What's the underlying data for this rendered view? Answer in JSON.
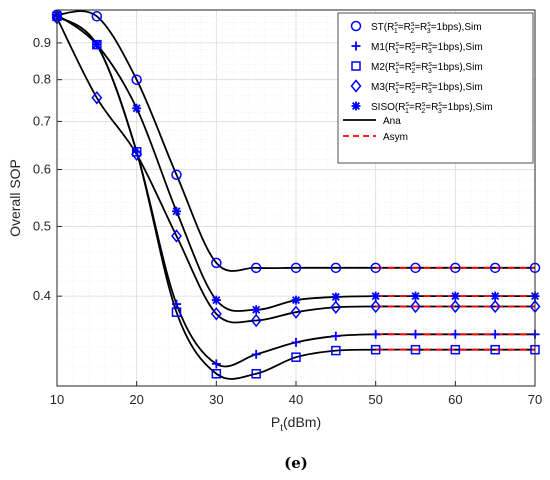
{
  "chart_data": {
    "type": "line",
    "title": "",
    "xlabel": "P",
    "xlabel_sub": "t",
    "xlabel_suffix": "(dBm)",
    "ylabel": "Overall SOP",
    "xlim": [
      10,
      70
    ],
    "ylim": [
      0.3,
      1.0
    ],
    "yscale": "log",
    "grid": true,
    "legend_position": "top-right",
    "x_ticks": [
      10,
      20,
      30,
      40,
      50,
      60,
      70
    ],
    "y_ticks": [
      0.4,
      0.5,
      0.6,
      0.7,
      0.8,
      0.9
    ],
    "y_tick_labels": [
      "0.4",
      "0.5",
      "0.6",
      "0.7",
      "0.8",
      "0.9"
    ],
    "x": [
      10,
      15,
      20,
      25,
      30,
      35,
      40,
      45,
      50,
      55,
      60,
      65,
      70
    ],
    "series": [
      {
        "name": "ST(R1s=R2s=R3s=1bps),Sim",
        "marker": "circle",
        "legend": {
          "pre": "ST(R",
          "sub": "1",
          "mid1": "=R",
          "sub2": "2",
          "mid2": "=R",
          "sub3": "3",
          "post": "=1bps),Sim"
        },
        "values": [
          0.985,
          0.98,
          0.8,
          0.59,
          0.445,
          0.438,
          0.438,
          0.438,
          0.438,
          0.438,
          0.438,
          0.438,
          0.438
        ]
      },
      {
        "name": "M1(R1s=R2s=R3s=1bps),Sim",
        "marker": "plus",
        "legend": {
          "pre": "M1(R",
          "sub": "1",
          "mid1": "=R",
          "sub2": "2",
          "mid2": "=R",
          "sub3": "3",
          "post": "=1bps),Sim"
        },
        "values": [
          0.98,
          0.895,
          0.635,
          0.39,
          0.322,
          0.332,
          0.345,
          0.352,
          0.354,
          0.354,
          0.354,
          0.354,
          0.354
        ]
      },
      {
        "name": "M2(R1s=R2s=R3s=1bps),Sim",
        "marker": "square",
        "legend": {
          "pre": "M2(R",
          "sub": "1",
          "mid1": "=R",
          "sub2": "2",
          "mid2": "=R",
          "sub3": "3",
          "post": "=1bps),Sim"
        },
        "values": [
          0.98,
          0.895,
          0.635,
          0.38,
          0.312,
          0.312,
          0.329,
          0.336,
          0.337,
          0.337,
          0.337,
          0.337,
          0.337
        ]
      },
      {
        "name": "M3(R1s=R2s=R3s=1bps),Sim",
        "marker": "diamond",
        "legend": {
          "pre": "M3(R",
          "sub": "1",
          "mid1": "=R",
          "sub2": "2",
          "mid2": "=R",
          "sub3": "3",
          "post": "=1bps),Sim"
        },
        "values": [
          0.975,
          0.755,
          0.63,
          0.485,
          0.378,
          0.37,
          0.38,
          0.386,
          0.387,
          0.387,
          0.387,
          0.387,
          0.387
        ]
      },
      {
        "name": "SISO(R1s=R2s=R3s=1bps),Sim",
        "marker": "asterisk",
        "legend": {
          "pre": "SISO(R",
          "sub": "1",
          "mid1": "=R",
          "sub2": "2",
          "mid2": "=R",
          "sub3": "3",
          "post": "=1bps),Sim"
        },
        "values": [
          0.985,
          0.895,
          0.73,
          0.525,
          0.395,
          0.383,
          0.395,
          0.399,
          0.4,
          0.4,
          0.4,
          0.4,
          0.4
        ]
      }
    ],
    "legend_lines": [
      {
        "name": "Ana",
        "style": "solid",
        "color": "#000000"
      },
      {
        "name": "Asym",
        "style": "dashed",
        "color": "#ff0000"
      }
    ],
    "asym_from_x": 50,
    "marker_color": "#0000ff",
    "curve_color": "#000000",
    "asym_color": "#ff0000"
  },
  "caption": "(e)"
}
